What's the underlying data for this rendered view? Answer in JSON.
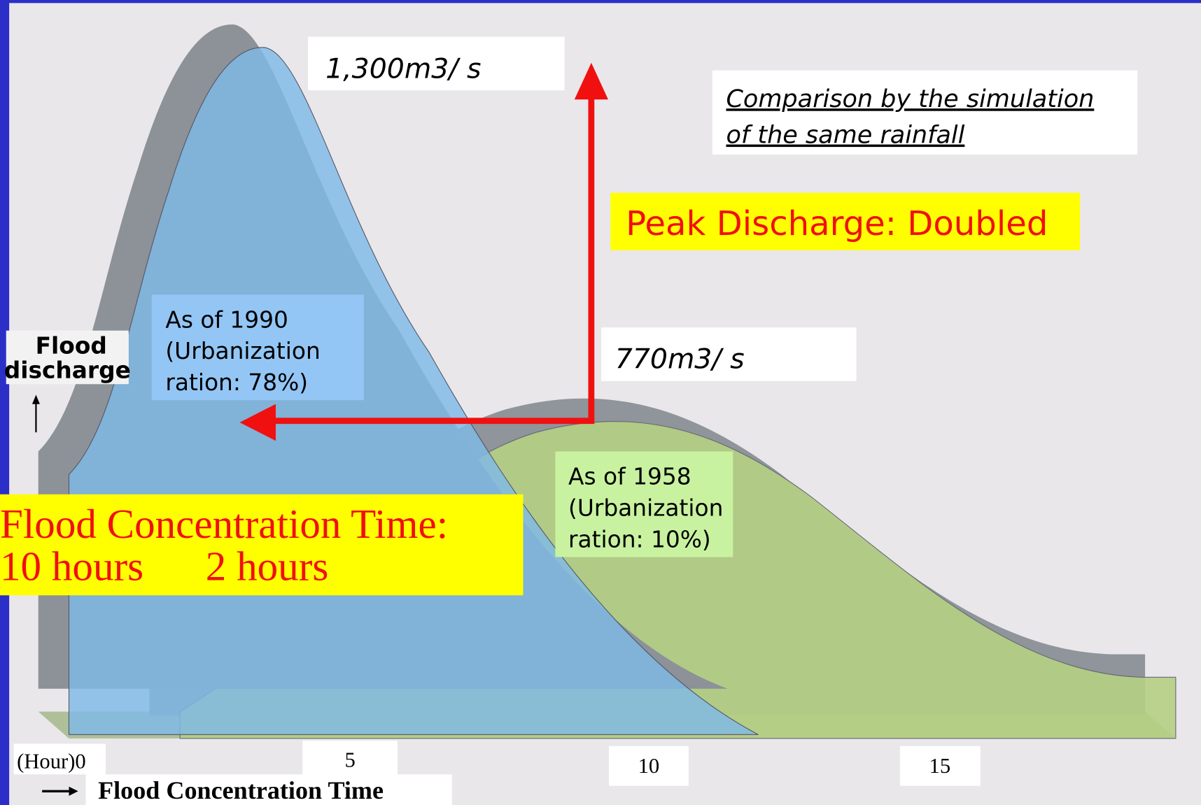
{
  "peak_1990_label": "1,300m3/ s",
  "note": {
    "lines": [
      "Comparison  by the simulation",
      "of the same rainfall"
    ]
  },
  "peak_callout": "Peak Discharge: Doubled",
  "curve_1990": {
    "lines": [
      "As of 1990",
      "(Urbanization",
      "ration: 78%)"
    ]
  },
  "y_axis_label": {
    "lines": [
      "Flood",
      "discharge"
    ]
  },
  "peak_1958_label": "770m3/ s",
  "curve_1958": {
    "lines": [
      "As of 1958",
      "(Urbanization",
      "ration: 10%)"
    ]
  },
  "time_callout": {
    "lines": [
      "Flood Concentration Time:",
      "10 hours      2 hours"
    ]
  },
  "x_axis": {
    "ticks": [
      "(Hour)0",
      "5",
      "10",
      "15"
    ],
    "label": "Flood Concentration Time"
  }
}
